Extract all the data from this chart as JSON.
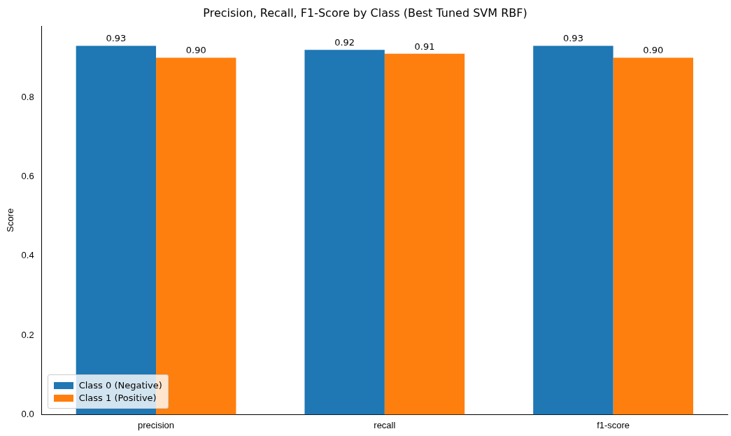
{
  "chart_data": {
    "type": "bar",
    "title": "Precision, Recall, F1-Score by Class (Best Tuned SVM RBF)",
    "ylabel": "Score",
    "categories": [
      "precision",
      "recall",
      "f1-score"
    ],
    "series": [
      {
        "name": "Class 0 (Negative)",
        "color": "#1f77b4",
        "values": [
          0.93,
          0.92,
          0.93
        ],
        "value_labels": [
          "0.93",
          "0.92",
          "0.93"
        ]
      },
      {
        "name": "Class 1 (Positive)",
        "color": "#ff7f0e",
        "values": [
          0.9,
          0.91,
          0.9
        ],
        "value_labels": [
          "0.90",
          "0.91",
          "0.90"
        ]
      }
    ],
    "ylim": [
      0,
      0.98
    ],
    "yticks": [
      {
        "value": 0,
        "label": "0.0"
      },
      {
        "value": 0.2,
        "label": "0.2"
      },
      {
        "value": 0.4,
        "label": "0.4"
      },
      {
        "value": 0.6,
        "label": "0.6"
      },
      {
        "value": 0.8,
        "label": "0.8"
      }
    ],
    "grid": false,
    "legend": "bottom left"
  }
}
